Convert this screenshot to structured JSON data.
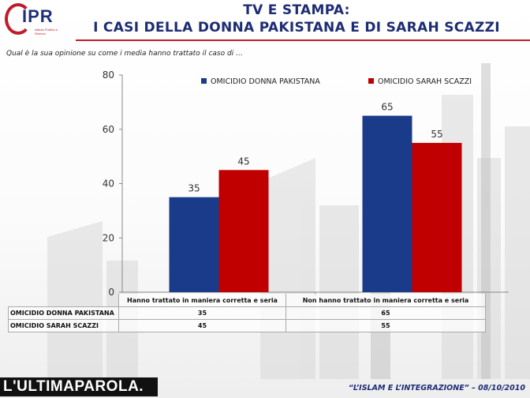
{
  "header": {
    "logo_text": "IPR",
    "logo_subtitle": "Istituto Politico e Ricerca",
    "title_line1": "TV E STAMPA:",
    "title_line2": "I CASI DELLA DONNA PAKISTANA E DI SARAH SCAZZI",
    "question": "Qual è la sua opinione su come i media hanno trattato il caso di …"
  },
  "colors": {
    "series1": "#1a3a8a",
    "series2": "#c00000",
    "title": "#1d2d73",
    "accent": "#c11b2b"
  },
  "chart_data": {
    "type": "bar",
    "categories": [
      "Hanno trattato in maniera corretta e seria",
      "Non hanno trattato in maniera corretta e seria"
    ],
    "series": [
      {
        "name": "OMICIDIO DONNA PAKISTANA",
        "values": [
          35,
          65
        ]
      },
      {
        "name": "OMICIDIO SARAH SCAZZI",
        "values": [
          45,
          55
        ]
      }
    ],
    "ylim": [
      0,
      80
    ],
    "yticks": [
      0,
      20,
      40,
      60,
      80
    ],
    "legend": "top",
    "grid": false,
    "data_table": true
  },
  "table": {
    "rows": [
      {
        "name": "OMICIDIO DONNA PAKISTANA",
        "values": [
          "35",
          "65"
        ]
      },
      {
        "name": "OMICIDIO SARAH SCAZZI",
        "values": [
          "45",
          "55"
        ]
      }
    ]
  },
  "footer": {
    "brand": "L'ULTIMAPAROLA.",
    "caption": "“L’ISLAM E L’INTEGRAZIONE” – 08/10/2010"
  }
}
